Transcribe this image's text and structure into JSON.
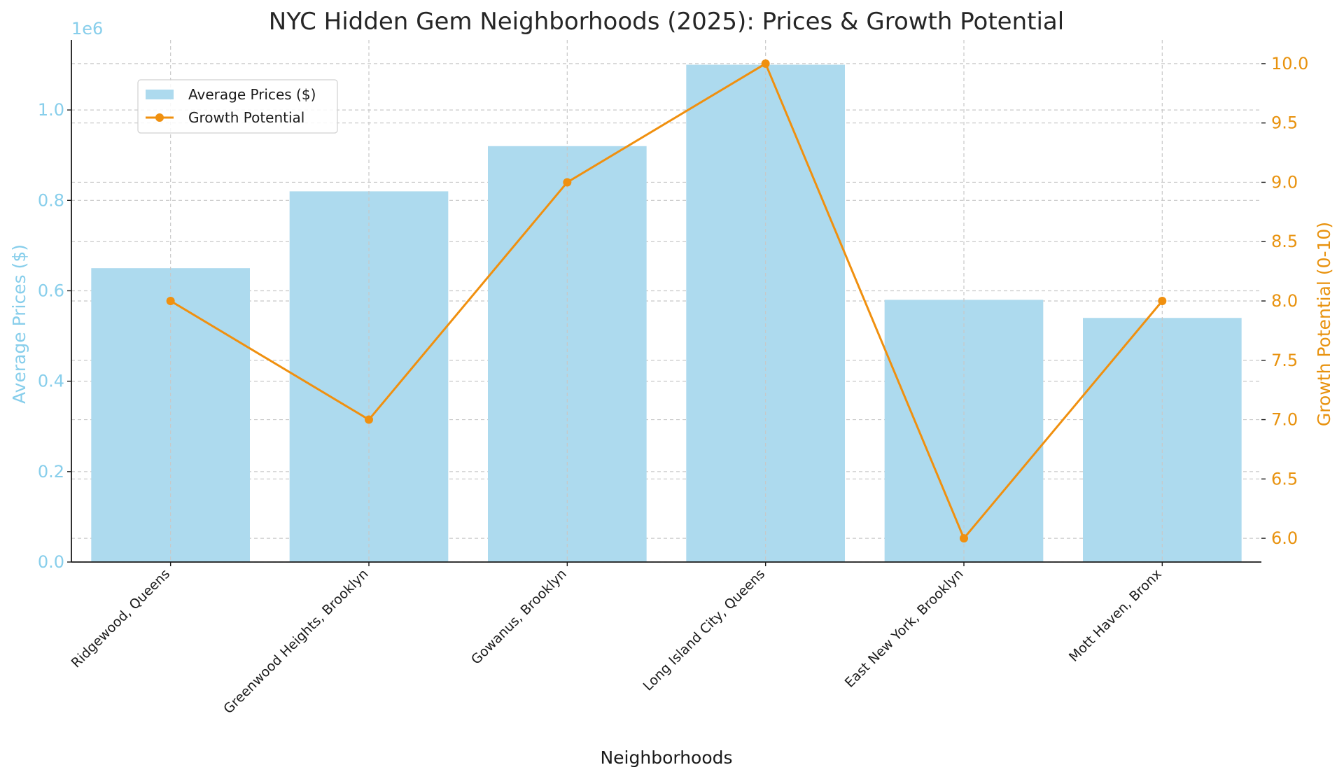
{
  "chart_data": {
    "type": "bar+line",
    "title": "NYC Hidden Gem Neighborhoods (2025): Prices & Growth Potential",
    "categories": [
      "Ridgewood, Queens",
      "Greenwood Heights, Brooklyn",
      "Gowanus, Brooklyn",
      "Long Island City, Queens",
      "East New York, Brooklyn",
      "Mott Haven, Bronx"
    ],
    "series": [
      {
        "name": "Average Prices ($)",
        "type": "bar",
        "axis": "left",
        "color": "#ADDAEE",
        "values": [
          650000,
          820000,
          920000,
          1100000,
          580000,
          540000
        ]
      },
      {
        "name": "Growth Potential",
        "type": "line",
        "axis": "right",
        "color": "#F0900F",
        "values": [
          8,
          7,
          9,
          10,
          6,
          8
        ]
      }
    ],
    "xlabel": "Neighborhoods",
    "ylabel_left": "Average Prices ($)",
    "ylabel_right": "Growth Potential (0-10)",
    "ylim_left": [
      0,
      1155000
    ],
    "ylim_right": [
      5.8,
      10.2
    ],
    "yticks_left": [
      0.0,
      0.2,
      0.4,
      0.6,
      0.8,
      1.0
    ],
    "yticks_left_labels": [
      "0.0",
      "0.2",
      "0.4",
      "0.6",
      "0.8",
      "1.0"
    ],
    "y_left_offset_label": "1e6",
    "yticks_right": [
      6.0,
      6.5,
      7.0,
      7.5,
      8.0,
      8.5,
      9.0,
      9.5,
      10.0
    ],
    "yticks_right_labels": [
      "6.0",
      "6.5",
      "7.0",
      "7.5",
      "8.0",
      "8.5",
      "9.0",
      "9.5",
      "10.0"
    ],
    "grid": true,
    "legend_position": "top-left",
    "left_axis_color": "#87CEEB",
    "right_axis_color": "#E8920E"
  }
}
